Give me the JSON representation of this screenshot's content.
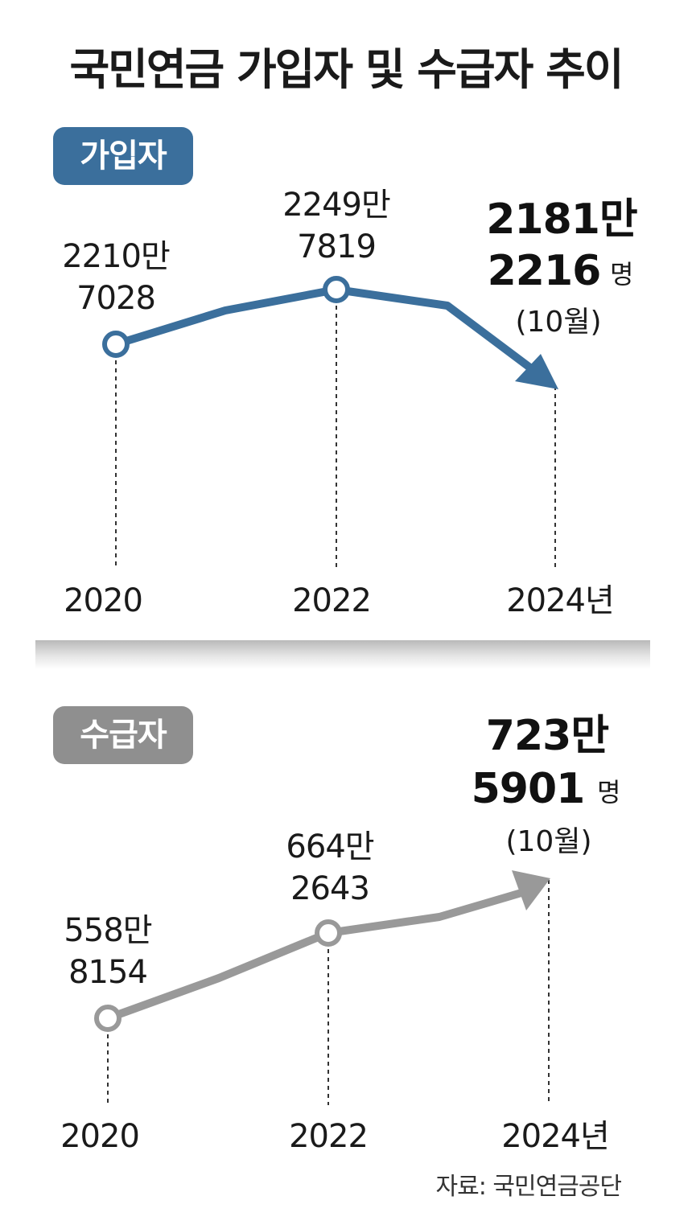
{
  "title": "국민연금 가입자 및 수급자 추이",
  "source": "자료: 국민연금공단",
  "colors": {
    "subscribers": "#3b6f9c",
    "recipients": "#999999"
  },
  "chart_data": [
    {
      "type": "line",
      "badge": "가입자",
      "x": [
        "2020",
        "2022",
        "2024년"
      ],
      "points": [
        {
          "x": "2020",
          "label_line1": "2210만",
          "label_line2": "7028"
        },
        {
          "x": "2022",
          "label_line1": "2249만",
          "label_line2": "7819"
        },
        {
          "x": "2024년",
          "label_line1": "2181만",
          "label_line2": "2216",
          "unit": "명",
          "note": "(10월)"
        }
      ],
      "values": [
        22107028,
        22497819,
        21812216
      ]
    },
    {
      "type": "line",
      "badge": "수급자",
      "x": [
        "2020",
        "2022",
        "2024년"
      ],
      "points": [
        {
          "x": "2020",
          "label_line1": "558만",
          "label_line2": "8154"
        },
        {
          "x": "2022",
          "label_line1": "664만",
          "label_line2": "2643"
        },
        {
          "x": "2024년",
          "label_line1": "723만",
          "label_line2": "5901",
          "unit": "명",
          "note": "(10월)"
        }
      ],
      "values": [
        5588154,
        6642643,
        7235901
      ]
    }
  ]
}
